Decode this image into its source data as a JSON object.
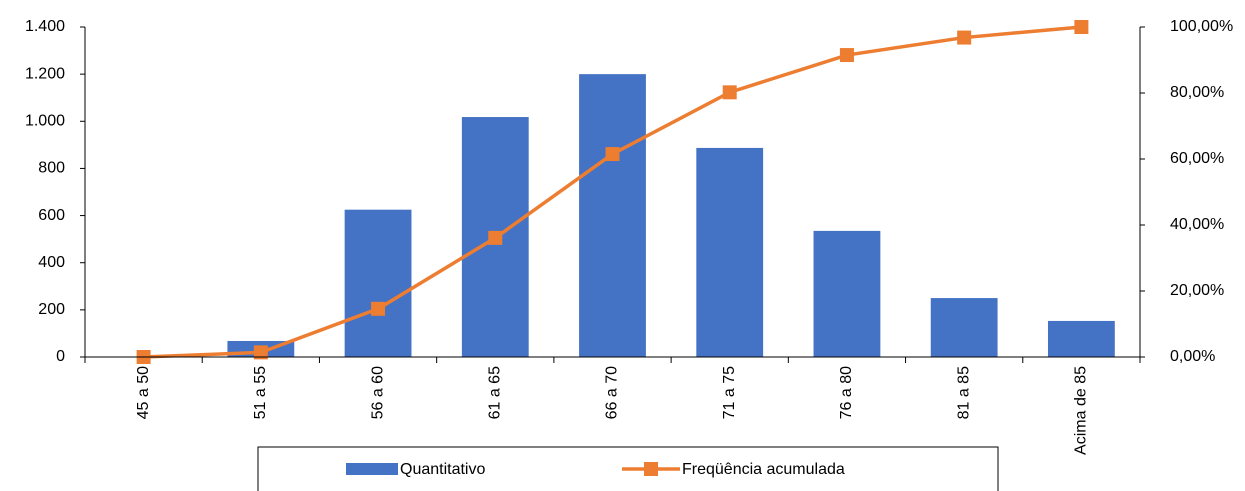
{
  "chart_data": {
    "type": "bar_line",
    "categories": [
      "45 a 50",
      "51 a 55",
      "56 a 60",
      "61 a 65",
      "66 a 70",
      "71 a 75",
      "76 a 80",
      "81 a 85",
      "Acima de 85"
    ],
    "series": [
      {
        "name": "Quantitativo",
        "type": "bar",
        "color": "#4472c4",
        "values": [
          0,
          68,
          625,
          1018,
          1200,
          887,
          535,
          250,
          153
        ]
      },
      {
        "name": "Freqüência acumulada",
        "type": "line",
        "axis": "y2",
        "color": "#ed7d31",
        "values": [
          0,
          1.4,
          14.6,
          36.1,
          61.5,
          80.2,
          91.5,
          96.8,
          100
        ]
      }
    ],
    "ylim": [
      0,
      1400
    ],
    "yticks": [
      0,
      200,
      400,
      600,
      800,
      {
        "value": 1000,
        "label": "1.000"
      },
      {
        "value": 1200,
        "label": "1.200"
      },
      {
        "value": 1400,
        "label": "1.400"
      }
    ],
    "y2lim": [
      0,
      100
    ],
    "y2ticks": [
      {
        "value": 0,
        "label": "0,00%"
      },
      {
        "value": 20,
        "label": "20,00%"
      },
      {
        "value": 40,
        "label": "40,00%"
      },
      {
        "value": 60,
        "label": "60,00%"
      },
      {
        "value": 80,
        "label": "80,00%"
      },
      {
        "value": 100,
        "label": "100,00%"
      }
    ],
    "legend": "bottom"
  }
}
